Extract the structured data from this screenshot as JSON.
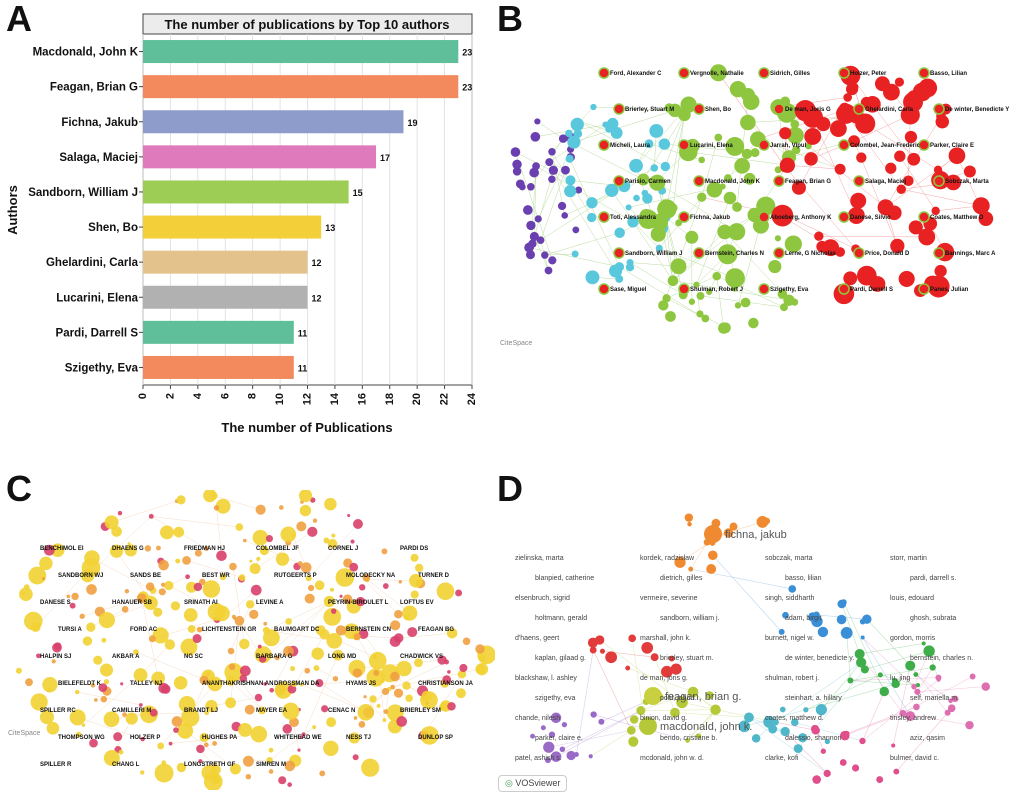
{
  "panels": {
    "a": "A",
    "b": "B",
    "c": "C",
    "d": "D"
  },
  "chart_data": {
    "type": "bar",
    "orientation": "horizontal",
    "title": "The number of publications by Top 10 authors",
    "xlabel": "The number of Publications",
    "ylabel": "Authors",
    "xlim": [
      0,
      24
    ],
    "xticks": [
      "0",
      "2",
      "4",
      "6",
      "8",
      "10",
      "12",
      "14",
      "16",
      "18",
      "20",
      "22",
      "24"
    ],
    "grid": true,
    "categories": [
      "Macdonald, John K",
      "Feagan, Brian G",
      "Fichna, Jakub",
      "Salaga, Maciej",
      "Sandborn, William J",
      "Shen, Bo",
      "Ghelardini, Carla",
      "Lucarini, Elena",
      "Pardi, Darrell S",
      "Szigethy, Eva"
    ],
    "values": [
      23,
      23,
      19,
      17,
      15,
      13,
      12,
      12,
      11,
      11
    ],
    "colors": [
      "#5fbf9a",
      "#f28a5e",
      "#8e9ccb",
      "#df7bbd",
      "#9dcd54",
      "#f3cf3a",
      "#e3c28b",
      "#b1b1b1",
      "#5fbf9a",
      "#f28a5e"
    ]
  },
  "network_b": {
    "watermark": "CiteSpace",
    "labels": [
      "Ford, Alexander C",
      "Vergnolle, Nathalie",
      "Sidrich, Gilles",
      "Holzer, Peter",
      "Basso, Lilian",
      "Brierley, Stuart M",
      "Shen, Bo",
      "De man, Joris G",
      "Ghelardini, Carla",
      "De winter, Benedicte Y",
      "Micheli, Laura",
      "Lucarini, Elena",
      "Jarrah, Vipul",
      "Colombel, Jean-Frederic",
      "Parker, Claire E",
      "Parisio, Carmen",
      "Macdonald, John K",
      "Feagan, Brian G",
      "Salaga, Maciej",
      "Sobczak, Marta",
      "Toti, Alessandra",
      "Fichna, Jakub",
      "Aboeberg, Anthony K",
      "Danese, Silvio",
      "Coates, Matthew D",
      "Sandborn, William J",
      "Bernstein, Charles N",
      "Lerne, G Nicholas",
      "Price, Donald D",
      "Bannings, Marc A",
      "Sase, Miguel",
      "Shulman, Robert J",
      "Szigethy, Eva",
      "Pardi, Darrell S",
      "Panes, Julian"
    ]
  },
  "network_c": {
    "watermark": "CiteSpace",
    "labels": [
      "BENCHIMOL EI",
      "DHAENS G",
      "FRIEDMAN HJ",
      "COLOMBEL JF",
      "CORNEL J",
      "PARDI DS",
      "SANDBORN WJ",
      "SANDS BE",
      "BEST WR",
      "RUTGEERTS P",
      "MOLODECKY NA",
      "TURNER D",
      "DANESE S",
      "HANAUER SB",
      "SRINATH AI",
      "LEVINE A",
      "PEYRIN-BIROULET L",
      "LOFTUS EV",
      "TURSI A",
      "FORD AC",
      "LICHTENSTEIN GR",
      "BAUMGART DC",
      "BERNSTEIN CN",
      "FEAGAN BG",
      "HALPIN SJ",
      "AKBAR A",
      "NG SC",
      "BARBARA G",
      "LONG MD",
      "CHADWICK VS",
      "BIELEFELDT K",
      "TALLEY NJ",
      "ANANTHAKRISHNAN AN",
      "DROSSMAN DA",
      "HYAMS JS",
      "CHRISTIANSON JA",
      "SPILLER RC",
      "CAMILLERI M",
      "BRANDT LJ",
      "MAYER EA",
      "CENAC N",
      "BRIERLEY SM",
      "THOMPSON WG",
      "HOLZER P",
      "HUGHES PA",
      "WHITEHEAD WE",
      "NESS TJ",
      "DUNLOP SP",
      "SPILLER R",
      "CHANG L",
      "LONGSTRETH GF",
      "SIMREN M"
    ]
  },
  "network_d": {
    "watermark": "VOSviewer",
    "big_labels": [
      "fichna, jakub",
      "feagan, brian g.",
      "macdonald, john k."
    ],
    "labels": [
      "zielinska, marta",
      "kordek, radzisław",
      "sobczak, marta",
      "storr, martin",
      "blanpied, catherine",
      "dietrich, gilles",
      "basso, lilian",
      "pardi, darrell s.",
      "elsenbruch, sigrid",
      "vermeire, severine",
      "singh, siddharth",
      "louis, edouard",
      "holtmann, gerald",
      "sandborn, william j.",
      "adam, birgit",
      "ghosh, subrata",
      "d'haens, geert",
      "marshall, john k.",
      "burnett, nigel w.",
      "gordon, morris",
      "kaplan, gilaad g.",
      "brierley, stuart m.",
      "de winter, benedicte y.",
      "bernstein, charles n.",
      "blackshaw, l. ashley",
      "de man, joris g.",
      "shulman, robert j.",
      "lu, jing",
      "szigethy, eva",
      "pohl, john f.",
      "steinhart, a. hillary",
      "self, mariella m.",
      "chande, nilesh",
      "binion, david g.",
      "coates, matthew d.",
      "tinsley, andrew",
      "parker, claire e.",
      "bendo, cristiane b.",
      "dalessio, shannon",
      "aziz, qasim",
      "patel, ashish s.",
      "mcdonald, john w. d.",
      "clarke, kofi",
      "bulmer, david c."
    ]
  }
}
